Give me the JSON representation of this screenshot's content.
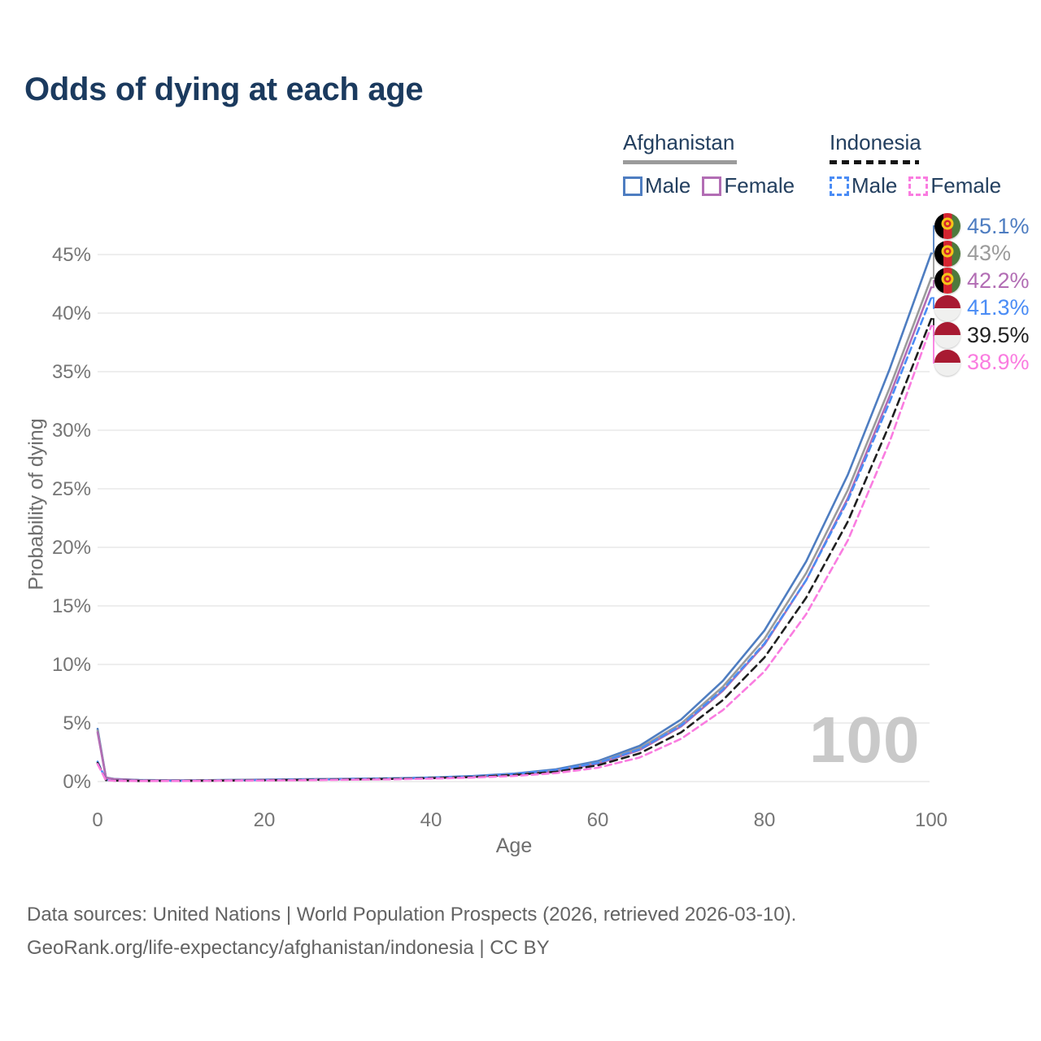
{
  "title": "Odds of dying at each age",
  "legend": {
    "groups": [
      {
        "country": "Afghanistan",
        "line_style": "solid",
        "underline_color": "#9b9b9b",
        "items": [
          {
            "label": "Male",
            "color": "#4e7dc1",
            "dashed": false
          },
          {
            "label": "Female",
            "color": "#b26db4",
            "dashed": false
          }
        ]
      },
      {
        "country": "Indonesia",
        "line_style": "dashed",
        "underline_color": "#151515",
        "items": [
          {
            "label": "Male",
            "color": "#4a8cf5",
            "dashed": true
          },
          {
            "label": "Female",
            "color": "#fa7ce0",
            "dashed": true
          }
        ]
      }
    ]
  },
  "end_labels": [
    {
      "value": "45.1%",
      "color": "#4e7dc1",
      "flag": "afghanistan-flag"
    },
    {
      "value": "43%",
      "color": "#9b9b9b",
      "flag": "afghanistan-flag"
    },
    {
      "value": "42.2%",
      "color": "#b26db4",
      "flag": "afghanistan-flag"
    },
    {
      "value": "41.3%",
      "color": "#4a8cf5",
      "flag": "indonesia-flag"
    },
    {
      "value": "39.5%",
      "color": "#222222",
      "flag": "indonesia-flag"
    },
    {
      "value": "38.9%",
      "color": "#fa7ce0",
      "flag": "indonesia-flag"
    }
  ],
  "watermark": "100",
  "axes": {
    "x": {
      "title": "Age",
      "ticks": [
        0,
        20,
        40,
        60,
        80,
        100
      ]
    },
    "y": {
      "title": "Probability of dying",
      "ticks": [
        "0%",
        "5%",
        "10%",
        "15%",
        "20%",
        "25%",
        "30%",
        "35%",
        "40%",
        "45%"
      ]
    }
  },
  "footer": {
    "line1": "Data sources: United Nations | World Population Prospects (2026, retrieved 2026-03-10).",
    "line2": "GeoRank.org/life-expectancy/afghanistan/indonesia | CC BY"
  },
  "chart_data": {
    "type": "line",
    "title": "Odds of dying at each age",
    "xlabel": "Age",
    "ylabel": "Probability of dying",
    "xlim": [
      0,
      100
    ],
    "ylim_percent": [
      0,
      45
    ],
    "grid": "horizontal",
    "legend_position": "top-right",
    "x": [
      0,
      1,
      2,
      5,
      10,
      15,
      20,
      25,
      30,
      35,
      40,
      45,
      50,
      55,
      60,
      65,
      70,
      75,
      80,
      85,
      90,
      95,
      100
    ],
    "series": [
      {
        "id": "afghanistan-male",
        "name": "Afghanistan Male",
        "color": "#4e7dc1",
        "dash": null,
        "end_label": "45.1%",
        "values": [
          4.5,
          0.35,
          0.22,
          0.13,
          0.1,
          0.13,
          0.17,
          0.2,
          0.24,
          0.28,
          0.35,
          0.47,
          0.68,
          1.05,
          1.75,
          3.05,
          5.3,
          8.6,
          12.9,
          18.8,
          26.2,
          35.2,
          45.1
        ]
      },
      {
        "id": "afghanistan-all",
        "name": "Afghanistan (both sexes)",
        "color": "#9b9b9b",
        "dash": null,
        "end_label": "43%",
        "values": [
          4.35,
          0.33,
          0.21,
          0.12,
          0.095,
          0.12,
          0.15,
          0.18,
          0.22,
          0.26,
          0.32,
          0.43,
          0.62,
          0.95,
          1.62,
          2.85,
          4.95,
          8.1,
          12.2,
          17.8,
          24.9,
          33.6,
          43.0
        ]
      },
      {
        "id": "afghanistan-female",
        "name": "Afghanistan Female",
        "color": "#b26db4",
        "dash": null,
        "end_label": "42.2%",
        "values": [
          4.2,
          0.31,
          0.2,
          0.11,
          0.09,
          0.11,
          0.14,
          0.17,
          0.2,
          0.24,
          0.3,
          0.4,
          0.57,
          0.88,
          1.52,
          2.68,
          4.7,
          7.75,
          11.7,
          17.2,
          24.2,
          32.9,
          42.2
        ]
      },
      {
        "id": "indonesia-male",
        "name": "Indonesia Male",
        "color": "#4a8cf5",
        "dash": "8 5",
        "end_label": "41.3%",
        "values": [
          1.7,
          0.13,
          0.09,
          0.06,
          0.06,
          0.09,
          0.13,
          0.17,
          0.21,
          0.26,
          0.33,
          0.45,
          0.65,
          0.98,
          1.6,
          2.75,
          4.8,
          7.85,
          11.8,
          17.2,
          24.0,
          32.4,
          41.3
        ]
      },
      {
        "id": "indonesia-all",
        "name": "Indonesia (both sexes)",
        "color": "#1f1f1f",
        "dash": "9 6",
        "end_label": "39.5%",
        "values": [
          1.6,
          0.12,
          0.08,
          0.055,
          0.055,
          0.08,
          0.11,
          0.14,
          0.18,
          0.22,
          0.29,
          0.39,
          0.56,
          0.84,
          1.38,
          2.4,
          4.2,
          6.95,
          10.6,
          15.7,
          22.2,
          30.5,
          39.5
        ]
      },
      {
        "id": "indonesia-female",
        "name": "Indonesia Female",
        "color": "#fa7ce0",
        "dash": "8 5",
        "end_label": "38.9%",
        "values": [
          1.5,
          0.11,
          0.07,
          0.05,
          0.05,
          0.07,
          0.09,
          0.12,
          0.15,
          0.19,
          0.25,
          0.34,
          0.48,
          0.72,
          1.18,
          2.05,
          3.65,
          6.1,
          9.4,
          14.3,
          20.6,
          29.0,
          38.9
        ]
      }
    ]
  }
}
